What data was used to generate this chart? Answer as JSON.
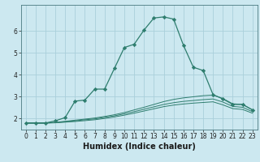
{
  "xlabel": "Humidex (Indice chaleur)",
  "bg_color": "#cce8f0",
  "grid_color": "#aacfdb",
  "line_color": "#2e7d6e",
  "x_values": [
    0,
    1,
    2,
    3,
    4,
    5,
    6,
    7,
    8,
    9,
    10,
    11,
    12,
    13,
    14,
    15,
    16,
    17,
    18,
    19,
    20,
    21,
    22,
    23
  ],
  "main_line": [
    1.8,
    1.8,
    1.8,
    1.9,
    2.05,
    2.8,
    2.85,
    3.35,
    3.35,
    4.3,
    5.25,
    5.4,
    6.05,
    6.6,
    6.65,
    6.55,
    5.35,
    4.35,
    4.2,
    3.1,
    2.9,
    2.65,
    2.65,
    2.4
  ],
  "line2": [
    1.8,
    1.8,
    1.8,
    1.83,
    1.88,
    1.93,
    1.98,
    2.03,
    2.1,
    2.18,
    2.28,
    2.4,
    2.52,
    2.65,
    2.78,
    2.88,
    2.95,
    3.0,
    3.05,
    3.08,
    2.92,
    2.68,
    2.65,
    2.4
  ],
  "line3": [
    1.8,
    1.8,
    1.8,
    1.82,
    1.86,
    1.9,
    1.95,
    1.99,
    2.06,
    2.13,
    2.22,
    2.32,
    2.43,
    2.54,
    2.65,
    2.73,
    2.79,
    2.83,
    2.87,
    2.9,
    2.76,
    2.56,
    2.52,
    2.32
  ],
  "line4": [
    1.8,
    1.8,
    1.8,
    1.81,
    1.84,
    1.87,
    1.91,
    1.95,
    2.01,
    2.08,
    2.16,
    2.25,
    2.35,
    2.45,
    2.55,
    2.62,
    2.67,
    2.71,
    2.74,
    2.77,
    2.63,
    2.46,
    2.42,
    2.25
  ],
  "ylim": [
    1.5,
    7.2
  ],
  "xlim": [
    -0.5,
    23.5
  ],
  "yticks": [
    2,
    3,
    4,
    5,
    6
  ],
  "xticks": [
    0,
    1,
    2,
    3,
    4,
    5,
    6,
    7,
    8,
    9,
    10,
    11,
    12,
    13,
    14,
    15,
    16,
    17,
    18,
    19,
    20,
    21,
    22,
    23
  ],
  "tick_fontsize": 5.5,
  "xlabel_fontsize": 7.0
}
